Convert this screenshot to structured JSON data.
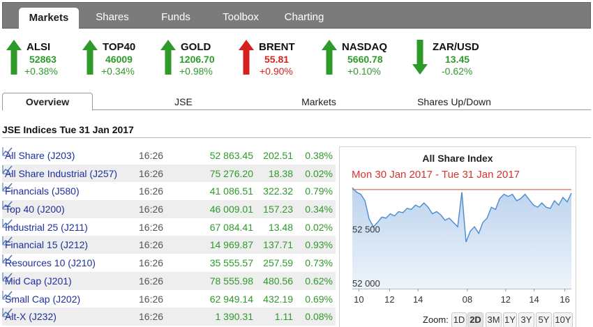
{
  "nav": {
    "tabs": [
      {
        "label": "Markets",
        "active": true
      },
      {
        "label": "Shares"
      },
      {
        "label": "Funds"
      },
      {
        "label": "Toolbox"
      },
      {
        "label": "Charting"
      }
    ]
  },
  "tickers": [
    {
      "name": "ALSI",
      "value": "52863",
      "change": "+0.38%",
      "direction": "up"
    },
    {
      "name": "TOP40",
      "value": "46009",
      "change": "+0.34%",
      "direction": "up"
    },
    {
      "name": "GOLD",
      "value": "1206.70",
      "change": "+0.98%",
      "direction": "up"
    },
    {
      "name": "BRENT",
      "value": "55.81",
      "change": "+0.90%",
      "direction": "down"
    },
    {
      "name": "NASDAQ",
      "value": "5660.78",
      "change": "+0.10%",
      "direction": "up"
    },
    {
      "name": "ZAR/USD",
      "value": "13.45",
      "change": "-0.62%",
      "direction": "down_green"
    }
  ],
  "colors": {
    "up": "#2e9a2a",
    "down": "#d6201f",
    "link": "#1f2f9e",
    "accent_red": "#d8322c"
  },
  "subtabs": [
    {
      "label": "Overview",
      "active": true
    },
    {
      "label": "JSE"
    },
    {
      "label": "Markets"
    },
    {
      "label": "Shares Up/Down"
    }
  ],
  "section_title": "JSE Indices Tue 31 Jan 2017",
  "indices": [
    {
      "name": "All Share (J203)",
      "time": "16:26",
      "value": "52 863.45",
      "change": "202.51",
      "percent": "0.38%"
    },
    {
      "name": "All Share Industrial (J257)",
      "time": "16:26",
      "value": "75 276.20",
      "change": "18.38",
      "percent": "0.02%"
    },
    {
      "name": "Financials (J580)",
      "time": "16:26",
      "value": "41 086.51",
      "change": "322.32",
      "percent": "0.79%"
    },
    {
      "name": "Top 40 (J200)",
      "time": "16:26",
      "value": "46 009.01",
      "change": "157.23",
      "percent": "0.34%"
    },
    {
      "name": "Industrial 25 (J211)",
      "time": "16:26",
      "value": "67 084.41",
      "change": "13.48",
      "percent": "0.02%"
    },
    {
      "name": "Financial 15 (J212)",
      "time": "16:26",
      "value": "14 969.87",
      "change": "137.71",
      "percent": "0.93%"
    },
    {
      "name": "Resources 10 (J210)",
      "time": "16:26",
      "value": "35 555.57",
      "change": "257.59",
      "percent": "0.73%"
    },
    {
      "name": "Mid Cap (J201)",
      "time": "16:26",
      "value": "78 555.98",
      "change": "480.56",
      "percent": "0.62%"
    },
    {
      "name": "Small Cap (J202)",
      "time": "16:26",
      "value": "62 949.14",
      "change": "432.19",
      "percent": "0.69%"
    },
    {
      "name": "Alt-X (J232)",
      "time": "16:26",
      "value": "1 390.31",
      "change": "1.11",
      "percent": "0.08%"
    }
  ],
  "chart": {
    "title": "All Share Index",
    "subtitle": "Mon 30 Jan 2017 - Tue 31 Jan 2017",
    "y_ticks": [
      "52 500",
      "52 000"
    ],
    "x_ticks": [
      "10",
      "12",
      "14",
      "08",
      "12",
      "14",
      "16"
    ],
    "zoom_label": "Zoom:",
    "zoom_options": [
      "1D",
      "2D",
      "3M",
      "1Y",
      "3Y",
      "5Y",
      "10Y"
    ],
    "zoom_selected": "2D"
  },
  "chart_data": {
    "type": "area",
    "title": "All Share Index",
    "subtitle": "Mon 30 Jan 2017 - Tue 31 Jan 2017",
    "xlabel": "",
    "ylabel": "",
    "x_tick_labels": [
      "10",
      "12",
      "14",
      "08",
      "12",
      "14",
      "16"
    ],
    "y_tick_labels": [
      "52 500",
      "52 000"
    ],
    "ylim": [
      51950,
      52920
    ],
    "reference_line": 52863,
    "grid": false,
    "series": [
      {
        "values": [
          52880,
          52840,
          52820,
          52760,
          52590,
          52520,
          52560,
          52610,
          52600,
          52640,
          52620,
          52660,
          52650,
          52690,
          52680,
          52720,
          52700,
          52740,
          52700,
          52640,
          52660,
          52630,
          52580,
          52600,
          52560,
          52520,
          52840,
          52380,
          52480,
          52520,
          52460,
          52560,
          52600,
          52700,
          52680,
          52780,
          52820,
          52800,
          52820,
          52760,
          52780,
          52820,
          52770,
          52720,
          52700,
          52740,
          52700,
          52690,
          52760,
          52720,
          52790,
          52750,
          52830
        ]
      }
    ]
  }
}
